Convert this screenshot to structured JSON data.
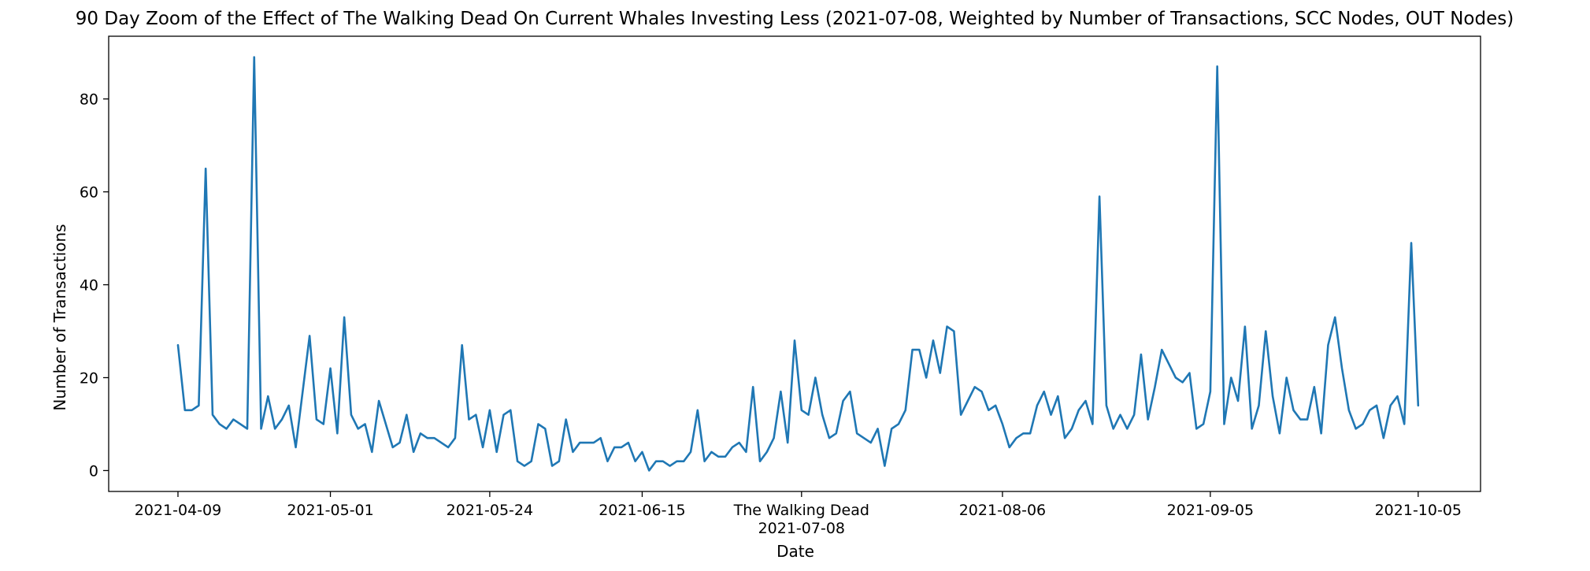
{
  "chart_data": {
    "type": "line",
    "title": "90 Day Zoom of the Effect of The Walking Dead On Current Whales Investing Less (2021-07-08, Weighted by Number of Transactions, SCC Nodes, OUT Nodes)",
    "xlabel": "Date",
    "ylabel": "Number of Transactions",
    "ylim": [
      -4.5,
      93.5
    ],
    "xlim": [
      "2021-03-30",
      "2021-10-14"
    ],
    "yticks": [
      0,
      20,
      40,
      60,
      80
    ],
    "xticks": [
      "2021-04-09",
      "2021-05-01",
      "2021-05-24",
      "2021-06-15",
      "2021-07-08",
      "2021-08-06",
      "2021-09-05",
      "2021-10-05"
    ],
    "annotation": {
      "text": "The Walking Dead",
      "date": "2021-07-08"
    },
    "grid": false,
    "color": "#1f77b4",
    "series": [
      {
        "start_date": "2021-04-09",
        "values": [
          27,
          13,
          13,
          14,
          65,
          12,
          10,
          9,
          11,
          10,
          9,
          89,
          9,
          16,
          9,
          11,
          14,
          5,
          17,
          29,
          11,
          10,
          22,
          8,
          33,
          12,
          9,
          10,
          4,
          15,
          10,
          5,
          6,
          12,
          4,
          8,
          7,
          7,
          6,
          5,
          7,
          27,
          11,
          12,
          5,
          13,
          4,
          12,
          13,
          2,
          1,
          2,
          10,
          9,
          1,
          2,
          11,
          4,
          6,
          6,
          6,
          7,
          2,
          5,
          5,
          6,
          2,
          4,
          0,
          2,
          2,
          1,
          2,
          2,
          4,
          13,
          2,
          4,
          3,
          3,
          5,
          6,
          4,
          18,
          2,
          4,
          7,
          17,
          6,
          28,
          13,
          12,
          20,
          12,
          7,
          8,
          15,
          17,
          8,
          7,
          6,
          9,
          1,
          9,
          10,
          13,
          26,
          26,
          20,
          28,
          21,
          31,
          30,
          12,
          15,
          18,
          17,
          13,
          14,
          10,
          5,
          7,
          8,
          8,
          14,
          17,
          12,
          16,
          7,
          9,
          13,
          15,
          10,
          59,
          14,
          9,
          12,
          9,
          12,
          25,
          11,
          18,
          26,
          23,
          20,
          19,
          21,
          9,
          10,
          17,
          87,
          10,
          20,
          15,
          31,
          9,
          14,
          30,
          16,
          8,
          20,
          13,
          11,
          11,
          18,
          8,
          27,
          33,
          22,
          13,
          9,
          10,
          13,
          14,
          7,
          14,
          16,
          10,
          49,
          14
        ]
      }
    ]
  }
}
